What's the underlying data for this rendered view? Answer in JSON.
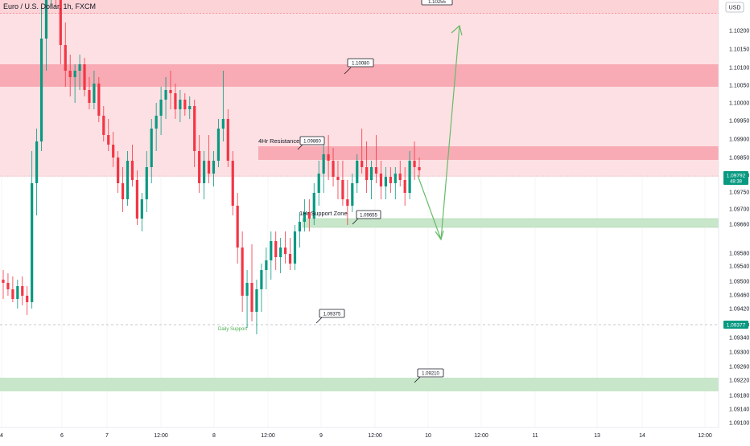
{
  "header": {
    "title": "Euro / U.S. Dollar, 1h, FXCM",
    "currency": "USD"
  },
  "colors": {
    "up": "#089981",
    "down": "#f23645",
    "resistance_fill": "#f7a1ab",
    "upper_zone": "#fcd3d7",
    "support_fill": "#c8e6c9",
    "arrow": "#66bb6a",
    "grid": "#f0f3fa"
  },
  "annotations": {
    "label_1_10255": "1.10255",
    "label_1_10080": "1.10080",
    "label_1_09860": "1.09860",
    "label_1_09655": "1.09655",
    "label_1_09375": "1.09375",
    "label_1_09210": "1.09210",
    "resistance_text": "4Hr Resistance",
    "support_zone_text": "1Hr Support Zone",
    "daily_support_text": "Daily Support"
  },
  "price_badges": {
    "current_price": "1.09792",
    "countdown": "48:38",
    "daily_support_price": "1.09377"
  },
  "chart_data": {
    "type": "candlestick",
    "title": "Euro / U.S. Dollar, 1h, FXCM",
    "y_axis_side": "right",
    "ylim": [
      1.09075,
      1.1025
    ],
    "y_ticks": [
      "1.10200",
      "1.10150",
      "1.10100",
      "1.10050",
      "1.10000",
      "1.09950",
      "1.09900",
      "1.09850",
      "1.09800",
      "1.09750",
      "1.09700",
      "1.09660",
      "1.09580",
      "1.09540",
      "1.09500",
      "1.09460",
      "1.09420",
      "1.09380",
      "1.09340",
      "1.09300",
      "1.09260",
      "1.09220",
      "1.09180",
      "1.09140",
      "1.09100"
    ],
    "x_ticks": [
      "4",
      "6",
      "7",
      "12:00",
      "8",
      "12:00",
      "9",
      "12:00",
      "10",
      "12:00",
      "11",
      "13",
      "14",
      "12:00"
    ],
    "zones": [
      {
        "name": "upper red zone",
        "y_from": 1.10255,
        "y_to": 1.104
      },
      {
        "name": "1.10080 zone",
        "y_from": 1.10035,
        "y_to": 1.10105
      },
      {
        "name": "4Hr Resistance",
        "y_from": 1.0984,
        "y_to": 1.09885
      },
      {
        "name": "1Hr Support Zone",
        "y_from": 1.09645,
        "y_to": 1.0967
      },
      {
        "name": "lower green zone",
        "y_from": 1.09185,
        "y_to": 1.09225
      }
    ],
    "levels": [
      1.10255,
      1.09377
    ],
    "projection": [
      [
        1.09792
      ],
      [
        1.09605
      ],
      [
        1.10225
      ]
    ],
    "candles": [
      [
        1.0945,
        1.0948,
        1.0939,
        1.0944
      ],
      [
        1.0944,
        1.0947,
        1.094,
        1.0942
      ],
      [
        1.0942,
        1.0946,
        1.0938,
        1.0939
      ],
      [
        1.0939,
        1.0945,
        1.0936,
        1.0943
      ],
      [
        1.0943,
        1.0946,
        1.0937,
        1.094
      ],
      [
        1.094,
        1.0943,
        1.0934,
        1.0938
      ],
      [
        1.0938,
        1.0985,
        1.0936,
        1.0975
      ],
      [
        1.0975,
        1.0992,
        1.0965,
        1.0988
      ],
      [
        1.0988,
        1.103,
        1.0985,
        1.102
      ],
      [
        1.102,
        1.1045,
        1.101,
        1.1035
      ],
      [
        1.1035,
        1.106,
        1.103,
        1.1048
      ],
      [
        1.1048,
        1.1052,
        1.103,
        1.1035
      ],
      [
        1.1035,
        1.104,
        1.1012,
        1.1018
      ],
      [
        1.1018,
        1.1025,
        1.1005,
        1.101
      ],
      [
        1.101,
        1.1015,
        1.1002,
        1.1008
      ],
      [
        1.1008,
        1.1012,
        1.1,
        1.101
      ],
      [
        1.101,
        1.1015,
        1.1004,
        1.1012
      ],
      [
        1.1012,
        1.1014,
        1.1002,
        1.1004
      ],
      [
        1.1004,
        1.1008,
        1.0998,
        1.1
      ],
      [
        1.1,
        1.101,
        1.0998,
        1.1006
      ],
      [
        1.1006,
        1.1008,
        1.0994,
        1.0996
      ],
      [
        1.0996,
        1.0999,
        1.0988,
        1.099
      ],
      [
        1.099,
        1.0995,
        1.0985,
        1.0987
      ],
      [
        1.0987,
        1.0991,
        1.098,
        1.0983
      ],
      [
        1.0983,
        1.0985,
        1.0972,
        1.0975
      ],
      [
        1.0975,
        1.098,
        1.0966,
        1.097
      ],
      [
        1.097,
        1.0985,
        1.0968,
        1.0982
      ],
      [
        1.0982,
        1.0987,
        1.0974,
        1.0976
      ],
      [
        1.0976,
        1.0979,
        1.0962,
        1.0964
      ],
      [
        1.0964,
        1.0972,
        1.096,
        1.097
      ],
      [
        1.097,
        1.0985,
        1.0966,
        1.098
      ],
      [
        1.098,
        1.0995,
        1.0975,
        1.0992
      ],
      [
        1.0992,
        1.1,
        1.0985,
        1.0996
      ],
      [
        1.0996,
        1.1005,
        1.099,
        1.1001
      ],
      [
        1.1001,
        1.1008,
        1.0995,
        1.1004
      ],
      [
        1.1004,
        1.101,
        1.0998,
        1.1003
      ],
      [
        1.1003,
        1.1006,
        1.0995,
        1.0998
      ],
      [
        1.0998,
        1.1004,
        1.0994,
        1.1001
      ],
      [
        1.1001,
        1.1003,
        1.0996,
        1.0998
      ],
      [
        1.0998,
        1.1002,
        1.0995,
        1.0999
      ],
      [
        1.0999,
        1.1001,
        1.098,
        1.0985
      ],
      [
        1.0985,
        1.099,
        1.0972,
        1.0975
      ],
      [
        1.0975,
        1.0985,
        1.097,
        1.0982
      ],
      [
        1.0982,
        1.099,
        1.0975,
        1.0978
      ],
      [
        1.0978,
        1.0985,
        1.0974,
        1.0982
      ],
      [
        1.0982,
        1.0995,
        1.098,
        1.0992
      ],
      [
        1.0992,
        1.101,
        1.0988,
        1.0995
      ],
      [
        1.0995,
        1.0998,
        1.098,
        1.0982
      ],
      [
        1.0982,
        1.0985,
        1.0965,
        1.0968
      ],
      [
        1.0968,
        1.0972,
        1.095,
        1.0955
      ],
      [
        1.0955,
        1.096,
        1.0935,
        1.094
      ],
      [
        1.094,
        1.0948,
        1.093,
        1.0944
      ],
      [
        1.0944,
        1.0956,
        1.0932,
        1.0935
      ],
      [
        1.0935,
        1.0945,
        1.0928,
        1.0942
      ],
      [
        1.0942,
        1.095,
        1.0935,
        1.0948
      ],
      [
        1.0948,
        1.0955,
        1.0942,
        1.0951
      ],
      [
        1.0951,
        1.096,
        1.0945,
        1.0957
      ],
      [
        1.0957,
        1.096,
        1.0948,
        1.0952
      ],
      [
        1.0952,
        1.0958,
        1.0947,
        1.0955
      ],
      [
        1.0955,
        1.096,
        1.095,
        1.0953
      ],
      [
        1.0953,
        1.0958,
        1.0948,
        1.095
      ],
      [
        1.095,
        1.0962,
        1.0948,
        1.096
      ],
      [
        1.096,
        1.0966,
        1.0955,
        1.0963
      ],
      [
        1.0963,
        1.097,
        1.096,
        1.0966
      ],
      [
        1.0966,
        1.097,
        1.096,
        1.0964
      ],
      [
        1.0964,
        1.0975,
        1.0962,
        1.0972
      ],
      [
        1.0972,
        1.0982,
        1.0968,
        1.0978
      ],
      [
        1.0978,
        1.0988,
        1.0972,
        1.0984
      ],
      [
        1.0984,
        1.099,
        1.0976,
        1.0982
      ],
      [
        1.0982,
        1.0986,
        1.0974,
        1.0977
      ],
      [
        1.0977,
        1.0982,
        1.097,
        1.0976
      ],
      [
        1.0976,
        1.0982,
        1.0968,
        1.097
      ],
      [
        1.097,
        1.0976,
        1.0962,
        1.0968
      ],
      [
        1.0968,
        1.0978,
        1.0966,
        1.0975
      ],
      [
        1.0975,
        1.0984,
        1.0972,
        1.0982
      ],
      [
        1.0982,
        1.0992,
        1.0978,
        1.098
      ],
      [
        1.098,
        1.0988,
        1.0972,
        1.0976
      ],
      [
        1.0976,
        1.0982,
        1.097,
        1.098
      ],
      [
        1.098,
        1.099,
        1.0975,
        1.0978
      ],
      [
        1.0978,
        1.0982,
        1.097,
        1.0974
      ],
      [
        1.0974,
        1.098,
        1.097,
        1.0977
      ],
      [
        1.0977,
        1.098,
        1.0972,
        1.0975
      ],
      [
        1.0975,
        1.098,
        1.097,
        1.0978
      ],
      [
        1.0978,
        1.0982,
        1.0974,
        1.0976
      ],
      [
        1.0976,
        1.098,
        1.0968,
        1.0972
      ],
      [
        1.0972,
        1.0985,
        1.097,
        1.0982
      ],
      [
        1.0982,
        1.0988,
        1.0976,
        1.098
      ],
      [
        1.098,
        1.0983,
        1.0977,
        1.0979
      ]
    ]
  }
}
